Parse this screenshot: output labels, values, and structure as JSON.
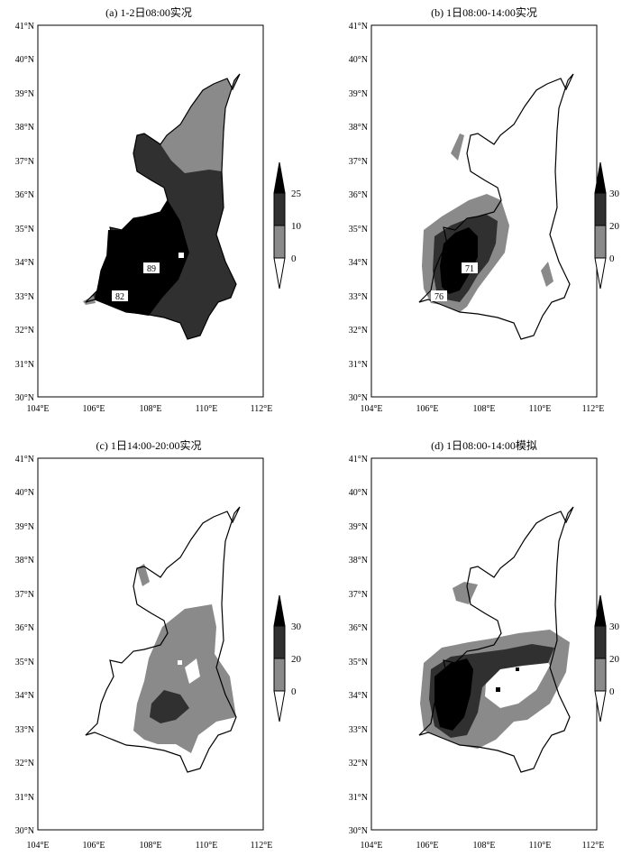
{
  "panels": [
    {
      "title": "(a) 1-2日08:00实况",
      "x_ticks": [
        "104°E",
        "106°E",
        "108°E",
        "110°E",
        "112°E"
      ],
      "y_ticks": [
        "41°N",
        "40°N",
        "39°N",
        "38°N",
        "37°N",
        "36°N",
        "35°N",
        "34°N",
        "33°N",
        "32°N",
        "31°N",
        "30°N"
      ],
      "legend_levels": [
        "25",
        "10",
        "0"
      ],
      "station_labels": [
        "89",
        "82"
      ]
    },
    {
      "title": "(b) 1日08:00-14:00实况",
      "x_ticks": [
        "104°E",
        "106°E",
        "108°E",
        "110°E",
        "112°E"
      ],
      "y_ticks": [
        "41°N",
        "40°N",
        "39°N",
        "38°N",
        "37°N",
        "36°N",
        "35°N",
        "34°N",
        "33°N",
        "32°N",
        "31°N",
        "30°N"
      ],
      "legend_levels": [
        "30",
        "20",
        "0"
      ],
      "station_labels": [
        "71",
        "76"
      ]
    },
    {
      "title": "(c) 1日14:00-20:00实况",
      "x_ticks": [
        "104°E",
        "106°E",
        "108°E",
        "110°E",
        "112°E"
      ],
      "y_ticks": [
        "41°N",
        "40°N",
        "39°N",
        "38°N",
        "37°N",
        "36°N",
        "35°N",
        "34°N",
        "33°N",
        "32°N",
        "31°N",
        "30°N"
      ],
      "legend_levels": [
        "30",
        "20",
        "0"
      ],
      "station_labels": []
    },
    {
      "title": "(d) 1日08:00-14:00模拟",
      "x_ticks": [
        "104°E",
        "106°E",
        "108°E",
        "110°E",
        "112°E"
      ],
      "y_ticks": [
        "41°N",
        "40°N",
        "39°N",
        "38°N",
        "37°N",
        "36°N",
        "35°N",
        "34°N",
        "33°N",
        "32°N",
        "31°N",
        "30°N"
      ],
      "legend_levels": [
        "30",
        "20",
        "0"
      ],
      "station_labels": []
    }
  ],
  "colors": {
    "dark": "#000000",
    "mid": "#303030",
    "light": "#8a8a8a",
    "none": "#ffffff"
  }
}
